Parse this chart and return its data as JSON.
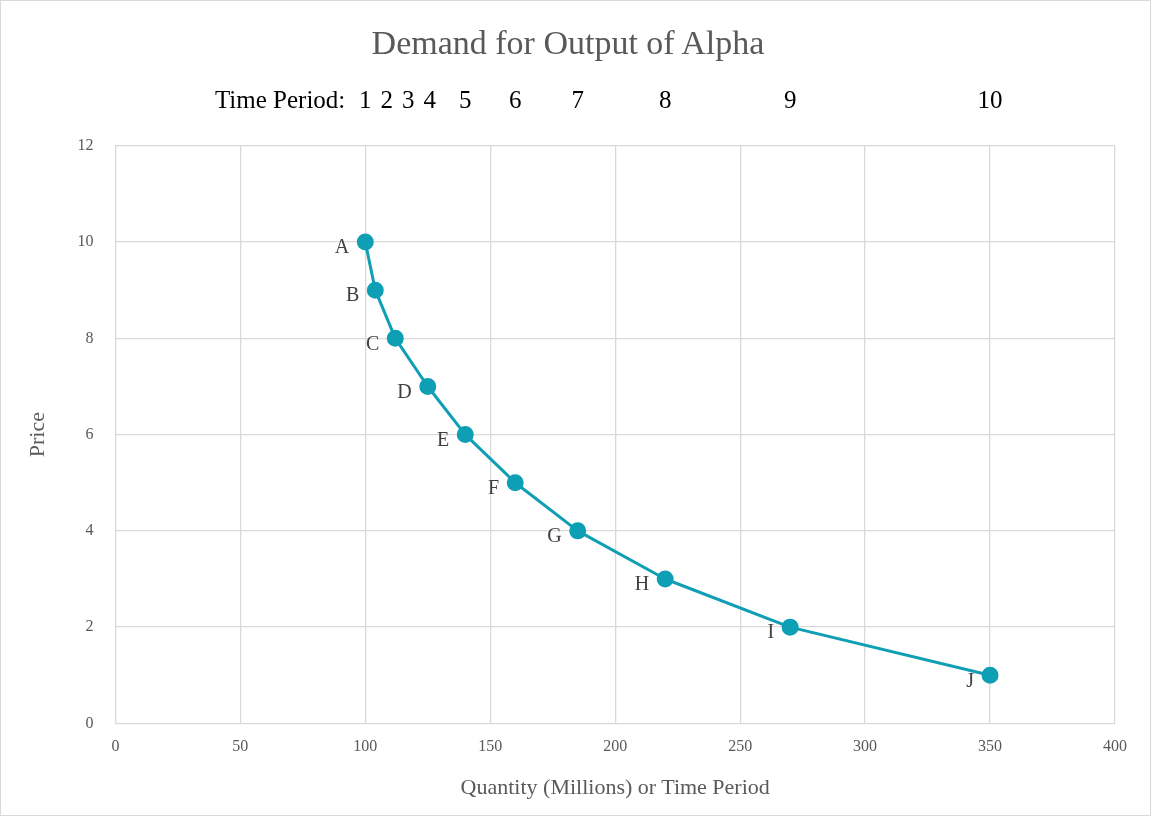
{
  "chart_data": {
    "type": "line",
    "title": "Demand for Output of Alpha",
    "xlabel": "Quantity (Millions) or Time Period",
    "ylabel": "Price",
    "x": [
      100,
      104,
      112,
      125,
      140,
      160,
      185,
      220,
      270,
      350
    ],
    "series": [
      {
        "color": "#0e9fb5",
        "values": [
          10,
          9,
          8,
          7,
          6,
          5,
          4,
          3,
          2,
          1
        ]
      }
    ],
    "xlim": [
      0,
      400
    ],
    "xticks": [
      0,
      50,
      100,
      150,
      200,
      250,
      300,
      350,
      400
    ],
    "ylim": [
      0,
      12
    ],
    "yticks": [
      0,
      2,
      4,
      6,
      8,
      10,
      12
    ],
    "annotations": [
      "Time Period:",
      "1",
      "2",
      "3",
      "4",
      "5",
      "6",
      "7",
      "8",
      "9",
      "10",
      {
        "text": "A",
        "x": 100,
        "y": 10
      },
      {
        "text": "B",
        "x": 104,
        "y": 9
      },
      {
        "text": "C",
        "x": 112,
        "y": 8
      },
      {
        "text": "D",
        "x": 125,
        "y": 7
      },
      {
        "text": "E",
        "x": 140,
        "y": 6
      },
      {
        "text": "F",
        "x": 160,
        "y": 5
      },
      {
        "text": "G",
        "x": 185,
        "y": 4
      },
      {
        "text": "H",
        "x": 220,
        "y": 3
      },
      {
        "text": "I",
        "x": 270,
        "y": 2
      },
      {
        "text": "J",
        "x": 350,
        "y": 1
      }
    ],
    "grid": true,
    "legend": false,
    "marker": "circle",
    "line_style": "solid"
  }
}
